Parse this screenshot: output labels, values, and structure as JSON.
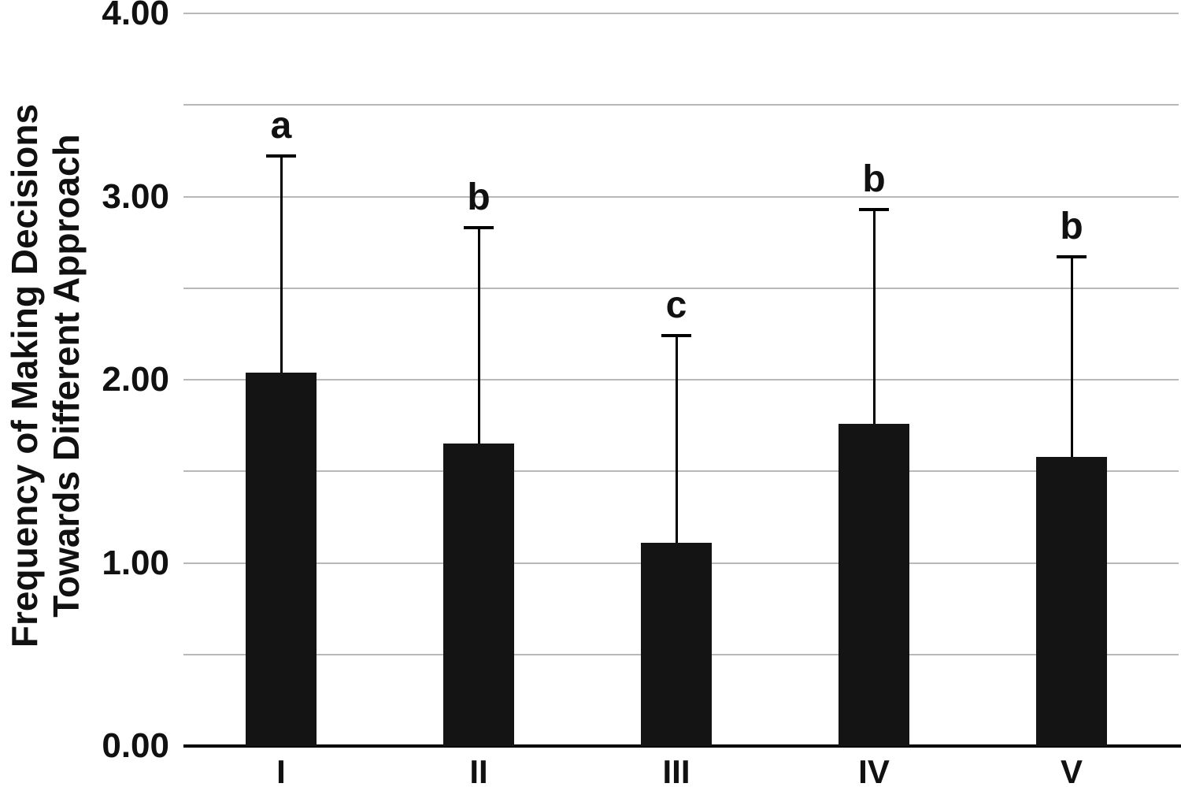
{
  "chart_data": {
    "type": "bar",
    "title": "",
    "ylabel": "Frequency of Making Decisions Towards Different Approach",
    "ylabel_lines": [
      "Frequency of Making Decisions",
      "Towards Different Approach"
    ],
    "xlabel": "",
    "categories": [
      "I",
      "II",
      "III",
      "IV",
      "V"
    ],
    "values": [
      2.04,
      1.65,
      1.11,
      1.76,
      1.58
    ],
    "error_upper": [
      1.18,
      1.18,
      1.13,
      1.17,
      1.09
    ],
    "error_bar_tops": [
      3.22,
      2.83,
      2.24,
      2.93,
      2.67
    ],
    "significance_letters": [
      "a",
      "b",
      "c",
      "b",
      "b"
    ],
    "ylim": [
      0,
      4
    ],
    "ytick_labels": [
      "0.00",
      "1.00",
      "2.00",
      "3.00",
      "4.00"
    ],
    "ytick_values": [
      0,
      1,
      2,
      3,
      4
    ],
    "gridline_step": 0.5,
    "grid_on": true,
    "legend": "none",
    "bar_color": "#141414",
    "gridline_color": "#b8b8b8",
    "axis_color": "#000000",
    "text_color": "#111111"
  }
}
